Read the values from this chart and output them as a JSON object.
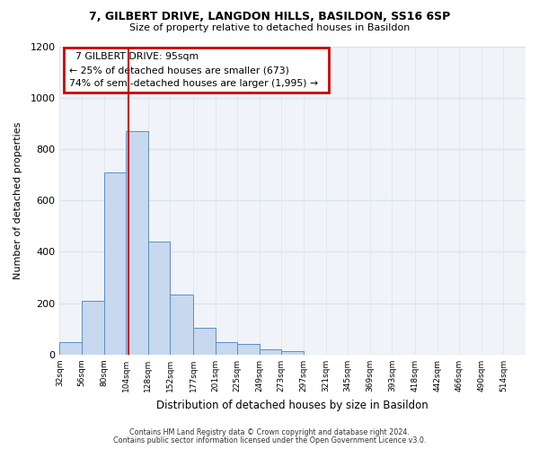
{
  "title": "7, GILBERT DRIVE, LANGDON HILLS, BASILDON, SS16 6SP",
  "subtitle": "Size of property relative to detached houses in Basildon",
  "xlabel": "Distribution of detached houses by size in Basildon",
  "ylabel": "Number of detached properties",
  "bin_labels": [
    "32sqm",
    "56sqm",
    "80sqm",
    "104sqm",
    "128sqm",
    "152sqm",
    "177sqm",
    "201sqm",
    "225sqm",
    "249sqm",
    "273sqm",
    "297sqm",
    "321sqm",
    "345sqm",
    "369sqm",
    "393sqm",
    "418sqm",
    "442sqm",
    "466sqm",
    "490sqm",
    "514sqm"
  ],
  "bar_heights": [
    50,
    210,
    710,
    870,
    440,
    235,
    105,
    50,
    40,
    20,
    15,
    0,
    0,
    0,
    0,
    0,
    0,
    0,
    0,
    0,
    0
  ],
  "bar_color": "#c8d8ee",
  "bar_edge_color": "#5b8ec4",
  "vline_color": "#cc0000",
  "ylim": [
    0,
    1200
  ],
  "yticks": [
    0,
    200,
    400,
    600,
    800,
    1000,
    1200
  ],
  "annotation_title": "7 GILBERT DRIVE: 95sqm",
  "annotation_line1": "← 25% of detached houses are smaller (673)",
  "annotation_line2": "74% of semi-detached houses are larger (1,995) →",
  "annotation_box_color": "#cc0000",
  "footer1": "Contains HM Land Registry data © Crown copyright and database right 2024.",
  "footer2": "Contains public sector information licensed under the Open Government Licence v3.0.",
  "bg_color": "#ffffff",
  "plot_bg_color": "#f0f4f9",
  "grid_color": "#d8e4f0",
  "bin_edges": [
    20,
    44,
    68,
    92,
    116,
    140,
    165,
    189,
    213,
    237,
    261,
    285,
    309,
    333,
    357,
    381,
    406,
    430,
    454,
    478,
    502,
    526
  ],
  "vline_x": 95
}
